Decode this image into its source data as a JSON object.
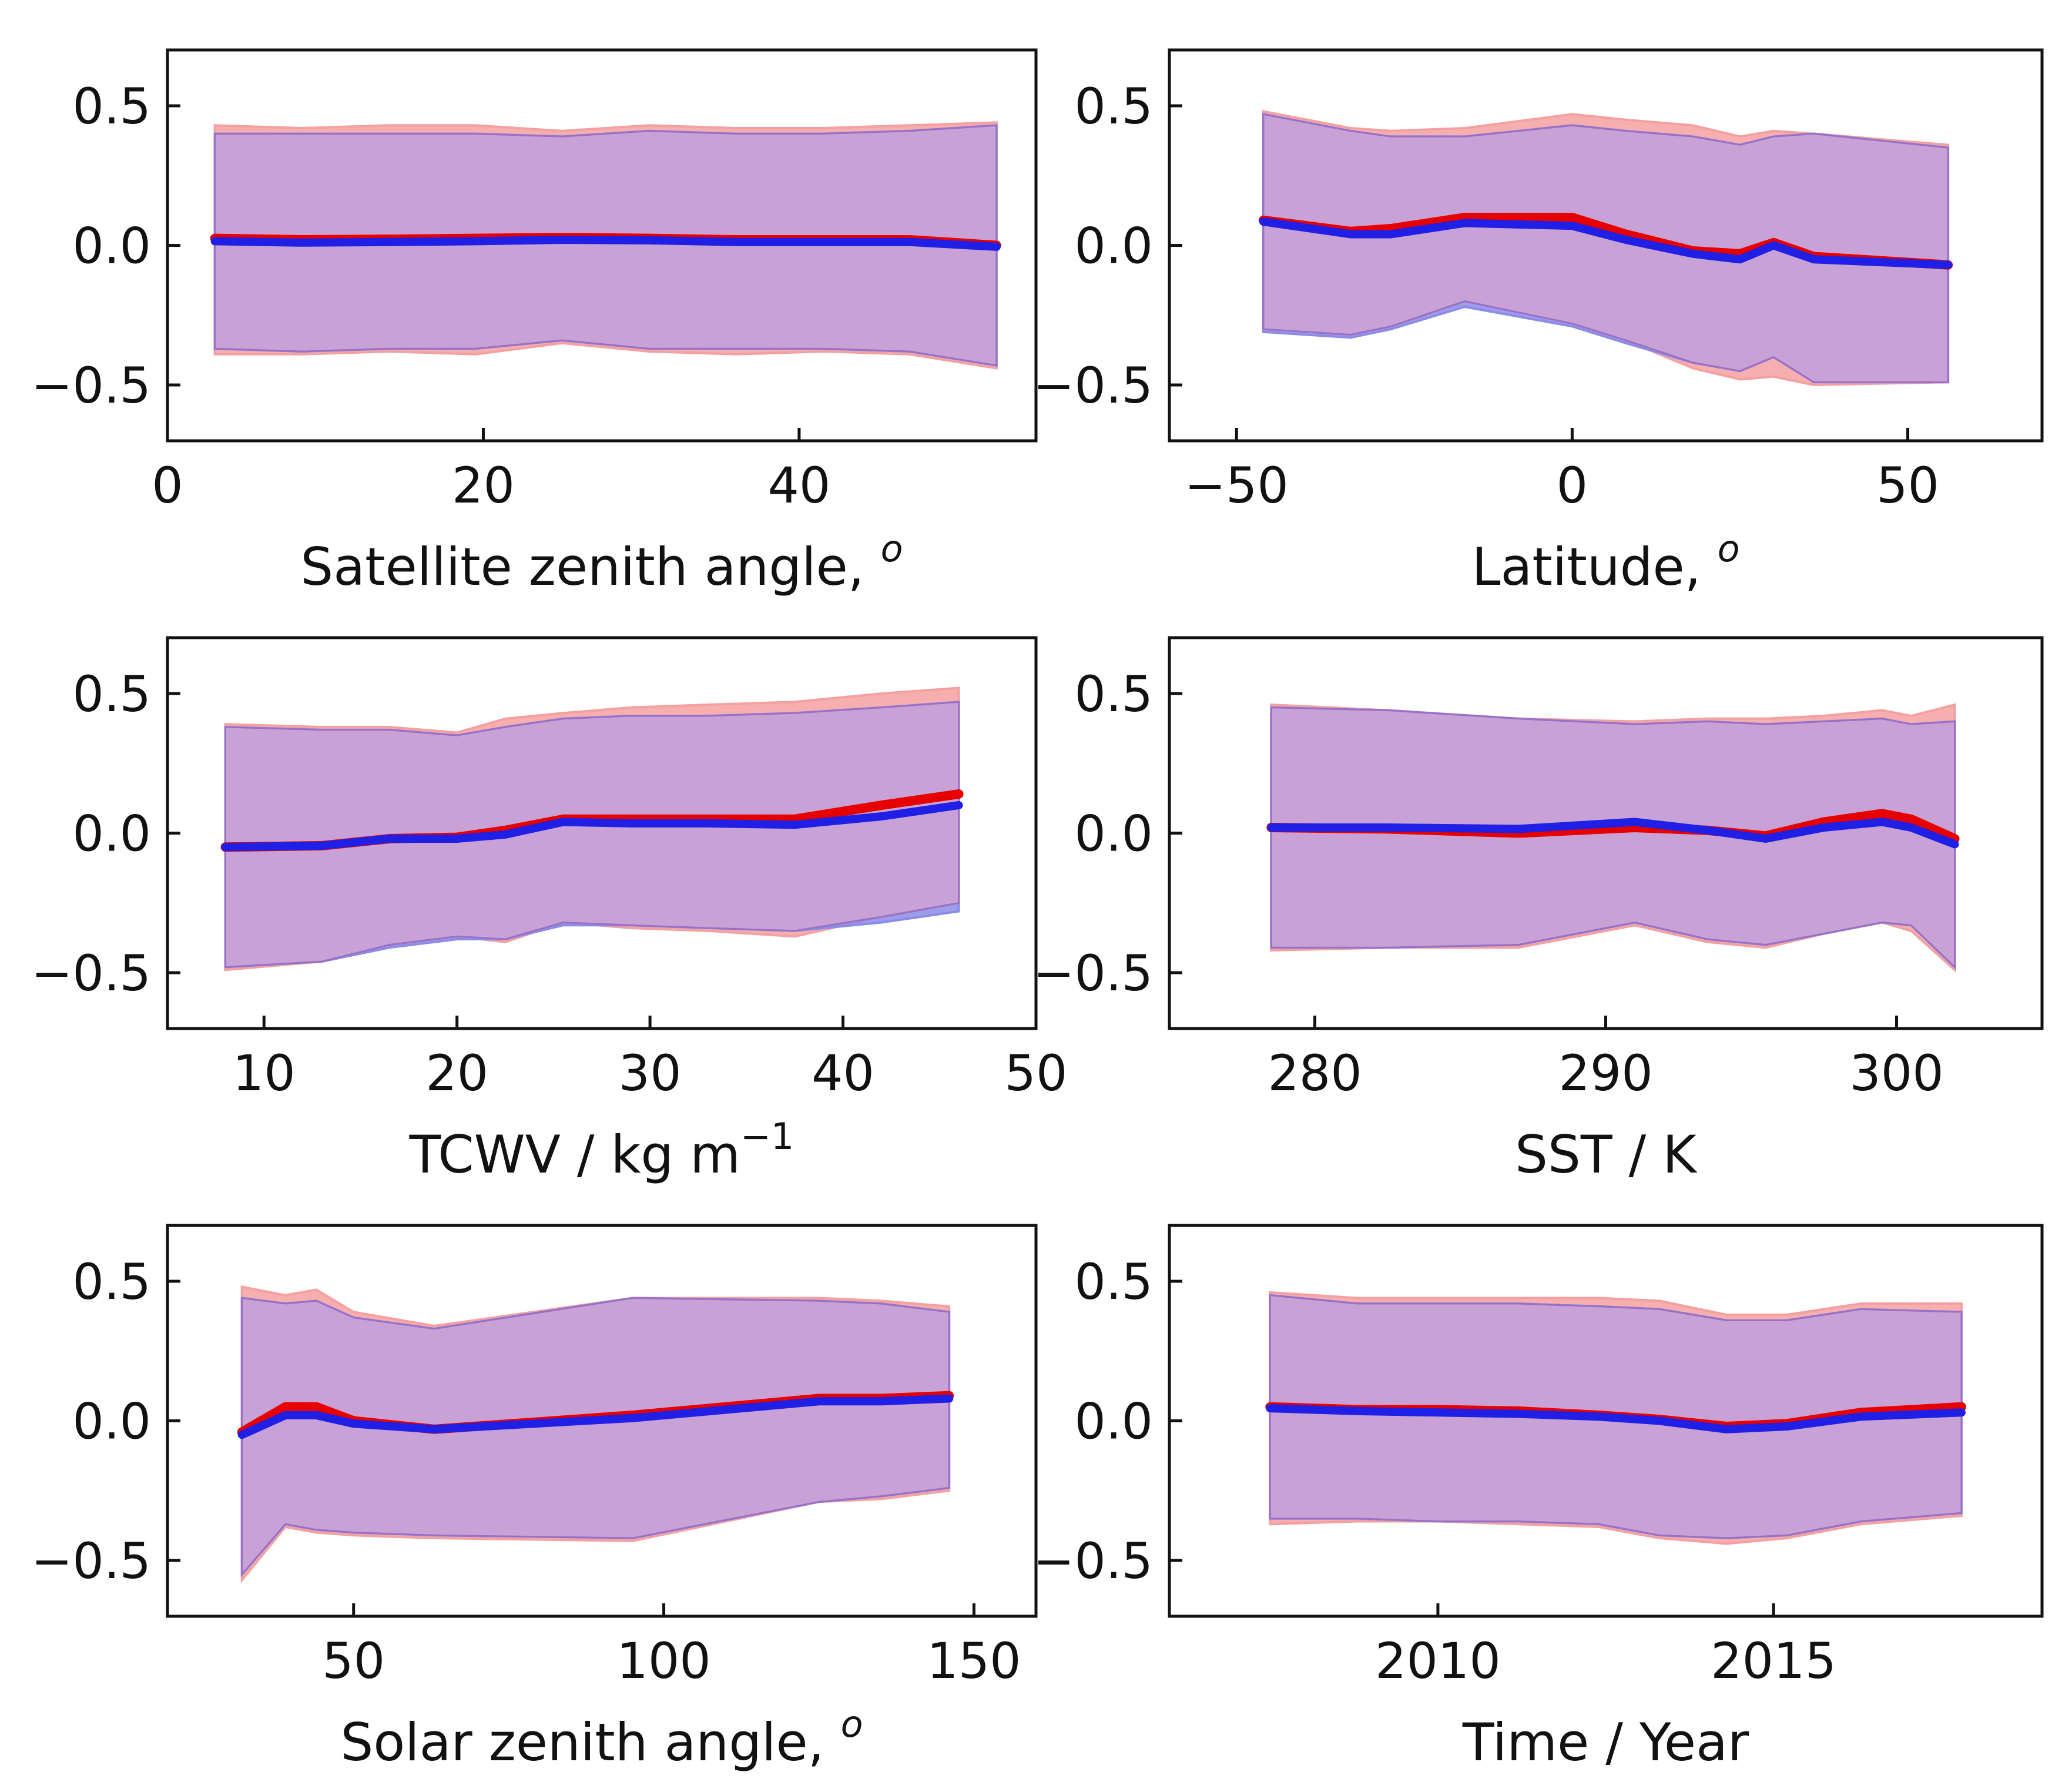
{
  "figure": {
    "y_ticks": [
      -0.5,
      0.0,
      0.5
    ],
    "y_tick_labels": [
      "−0.5",
      "0.0",
      "0.5"
    ],
    "ylim": [
      -0.7,
      0.7
    ],
    "colors": {
      "line_red": "#e60000",
      "line_blue": "#1f1fe6",
      "band_red": "#f4a0a0",
      "band_blue": "#8c8ce8",
      "band_overlap": "#c8a2d6",
      "axis": "#111111"
    }
  },
  "chart_data": [
    {
      "type": "line",
      "xlabel": "Satellite zenith angle, ",
      "xlabel_sup": "o",
      "xlim": [
        0,
        55
      ],
      "xticks": [
        0,
        20,
        40
      ],
      "xtick_labels": [
        "0",
        "20",
        "40"
      ],
      "x": [
        3,
        8.5,
        14,
        19.5,
        25,
        30.5,
        36,
        41.5,
        47,
        52.5
      ],
      "series": [
        {
          "name": "red",
          "mean": [
            0.025,
            0.02,
            0.022,
            0.025,
            0.028,
            0.025,
            0.02,
            0.02,
            0.02,
            0.0
          ],
          "upper": [
            0.43,
            0.42,
            0.43,
            0.43,
            0.41,
            0.43,
            0.42,
            0.42,
            0.43,
            0.44
          ],
          "lower": [
            -0.39,
            -0.39,
            -0.38,
            -0.39,
            -0.35,
            -0.38,
            -0.39,
            -0.38,
            -0.39,
            -0.44
          ]
        },
        {
          "name": "blue",
          "mean": [
            0.015,
            0.01,
            0.012,
            0.015,
            0.02,
            0.018,
            0.012,
            0.012,
            0.012,
            -0.005
          ],
          "upper": [
            0.4,
            0.4,
            0.4,
            0.4,
            0.39,
            0.41,
            0.4,
            0.4,
            0.41,
            0.43
          ],
          "lower": [
            -0.37,
            -0.38,
            -0.37,
            -0.37,
            -0.34,
            -0.37,
            -0.37,
            -0.37,
            -0.38,
            -0.43
          ]
        }
      ]
    },
    {
      "type": "line",
      "xlabel": "Latitude, ",
      "xlabel_sup": "o",
      "xlim": [
        -60,
        70
      ],
      "xticks": [
        -50,
        0,
        50
      ],
      "xtick_labels": [
        "−50",
        "0",
        "50"
      ],
      "x": [
        -46,
        -33,
        -27,
        -16,
        0,
        8,
        18,
        25,
        30,
        36,
        56
      ],
      "series": [
        {
          "name": "red",
          "mean": [
            0.09,
            0.05,
            0.06,
            0.1,
            0.1,
            0.04,
            -0.02,
            -0.03,
            0.01,
            -0.04,
            -0.07
          ],
          "upper": [
            0.48,
            0.42,
            0.41,
            0.42,
            0.47,
            0.45,
            0.43,
            0.39,
            0.41,
            0.4,
            0.36
          ],
          "lower": [
            -0.3,
            -0.32,
            -0.29,
            -0.2,
            -0.28,
            -0.34,
            -0.44,
            -0.48,
            -0.47,
            -0.5,
            -0.49
          ]
        },
        {
          "name": "blue",
          "mean": [
            0.085,
            0.04,
            0.04,
            0.08,
            0.07,
            0.02,
            -0.03,
            -0.05,
            0.0,
            -0.05,
            -0.07
          ],
          "upper": [
            0.47,
            0.41,
            0.39,
            0.39,
            0.43,
            0.41,
            0.39,
            0.36,
            0.39,
            0.4,
            0.35
          ],
          "lower": [
            -0.31,
            -0.33,
            -0.3,
            -0.22,
            -0.29,
            -0.35,
            -0.42,
            -0.45,
            -0.4,
            -0.49,
            -0.49
          ]
        }
      ]
    },
    {
      "type": "line",
      "xlabel": "TCWV /  kg m",
      "xlabel_sup": "−1",
      "xlim": [
        5,
        50
      ],
      "xticks": [
        10,
        20,
        30,
        40,
        50
      ],
      "xtick_labels": [
        "10",
        "20",
        "30",
        "40",
        "50"
      ],
      "x": [
        8,
        13,
        16.5,
        20,
        22.5,
        25.5,
        29,
        33,
        37.5,
        42,
        46
      ],
      "series": [
        {
          "name": "red",
          "mean": [
            -0.05,
            -0.045,
            -0.02,
            -0.015,
            0.01,
            0.05,
            0.05,
            0.05,
            0.05,
            0.1,
            0.14
          ],
          "upper": [
            0.39,
            0.38,
            0.38,
            0.36,
            0.41,
            0.43,
            0.45,
            0.46,
            0.47,
            0.5,
            0.52
          ],
          "lower": [
            -0.49,
            -0.46,
            -0.4,
            -0.37,
            -0.39,
            -0.32,
            -0.34,
            -0.35,
            -0.37,
            -0.3,
            -0.25
          ]
        },
        {
          "name": "blue",
          "mean": [
            -0.05,
            -0.045,
            -0.02,
            -0.02,
            -0.005,
            0.04,
            0.035,
            0.035,
            0.03,
            0.06,
            0.1
          ],
          "upper": [
            0.38,
            0.37,
            0.37,
            0.35,
            0.38,
            0.41,
            0.42,
            0.42,
            0.43,
            0.45,
            0.47
          ],
          "lower": [
            -0.48,
            -0.46,
            -0.41,
            -0.38,
            -0.38,
            -0.33,
            -0.33,
            -0.34,
            -0.35,
            -0.32,
            -0.28
          ]
        }
      ]
    },
    {
      "type": "line",
      "xlabel": "SST / K",
      "xlabel_sup": "",
      "xlim": [
        275,
        305
      ],
      "xticks": [
        280,
        290,
        300
      ],
      "xtick_labels": [
        "280",
        "290",
        "300"
      ],
      "x": [
        278.5,
        282.5,
        287,
        291,
        293.5,
        295.5,
        297.5,
        299.5,
        300.5,
        302
      ],
      "series": [
        {
          "name": "red",
          "mean": [
            0.02,
            0.015,
            0.0,
            0.02,
            0.01,
            -0.01,
            0.04,
            0.07,
            0.05,
            -0.02
          ],
          "upper": [
            0.46,
            0.44,
            0.41,
            0.4,
            0.41,
            0.41,
            0.42,
            0.44,
            0.42,
            0.46
          ],
          "lower": [
            -0.42,
            -0.41,
            -0.41,
            -0.33,
            -0.39,
            -0.41,
            -0.36,
            -0.32,
            -0.35,
            -0.49
          ]
        },
        {
          "name": "blue",
          "mean": [
            0.02,
            0.02,
            0.015,
            0.04,
            0.01,
            -0.02,
            0.02,
            0.04,
            0.02,
            -0.04
          ],
          "upper": [
            0.45,
            0.44,
            0.41,
            0.39,
            0.4,
            0.39,
            0.4,
            0.41,
            0.39,
            0.4
          ],
          "lower": [
            -0.41,
            -0.41,
            -0.4,
            -0.32,
            -0.38,
            -0.4,
            -0.36,
            -0.32,
            -0.33,
            -0.48
          ]
        }
      ]
    },
    {
      "type": "line",
      "xlabel": "Solar zenith angle, ",
      "xlabel_sup": "o",
      "xlim": [
        20,
        160
      ],
      "xticks": [
        50,
        100,
        150
      ],
      "xtick_labels": [
        "50",
        "100",
        "150"
      ],
      "x": [
        32,
        39,
        44,
        50,
        63,
        95,
        125,
        135,
        146
      ],
      "series": [
        {
          "name": "red",
          "mean": [
            -0.04,
            0.05,
            0.05,
            0.0,
            -0.03,
            0.02,
            0.08,
            0.08,
            0.09
          ],
          "upper": [
            0.48,
            0.45,
            0.47,
            0.39,
            0.34,
            0.44,
            0.44,
            0.43,
            0.41
          ],
          "lower": [
            -0.57,
            -0.38,
            -0.4,
            -0.41,
            -0.42,
            -0.43,
            -0.29,
            -0.28,
            -0.25
          ]
        },
        {
          "name": "blue",
          "mean": [
            -0.05,
            0.02,
            0.02,
            -0.01,
            -0.03,
            0.01,
            0.07,
            0.07,
            0.08
          ],
          "upper": [
            0.44,
            0.42,
            0.43,
            0.37,
            0.33,
            0.44,
            0.43,
            0.42,
            0.39
          ],
          "lower": [
            -0.55,
            -0.37,
            -0.39,
            -0.4,
            -0.41,
            -0.42,
            -0.29,
            -0.27,
            -0.24
          ]
        }
      ]
    },
    {
      "type": "line",
      "xlabel": "Time / Year",
      "xlabel_sup": "",
      "xlim": [
        2006,
        2019
      ],
      "xticks": [
        2010,
        2015
      ],
      "xtick_labels": [
        "2010",
        "2015"
      ],
      "x": [
        2007.5,
        2008.8,
        2010,
        2011.2,
        2012.4,
        2013.3,
        2014.3,
        2015.2,
        2016.3,
        2017.8
      ],
      "series": [
        {
          "name": "red",
          "mean": [
            0.05,
            0.04,
            0.04,
            0.035,
            0.02,
            0.005,
            -0.02,
            -0.01,
            0.03,
            0.05
          ],
          "upper": [
            0.46,
            0.44,
            0.44,
            0.44,
            0.44,
            0.43,
            0.38,
            0.38,
            0.42,
            0.42
          ],
          "lower": [
            -0.37,
            -0.36,
            -0.36,
            -0.37,
            -0.38,
            -0.42,
            -0.44,
            -0.42,
            -0.37,
            -0.34
          ]
        },
        {
          "name": "blue",
          "mean": [
            0.045,
            0.035,
            0.03,
            0.025,
            0.015,
            0.0,
            -0.03,
            -0.02,
            0.015,
            0.03
          ],
          "upper": [
            0.45,
            0.42,
            0.42,
            0.42,
            0.41,
            0.4,
            0.36,
            0.36,
            0.4,
            0.39
          ],
          "lower": [
            -0.35,
            -0.35,
            -0.36,
            -0.36,
            -0.37,
            -0.41,
            -0.42,
            -0.41,
            -0.36,
            -0.33
          ]
        }
      ]
    }
  ]
}
